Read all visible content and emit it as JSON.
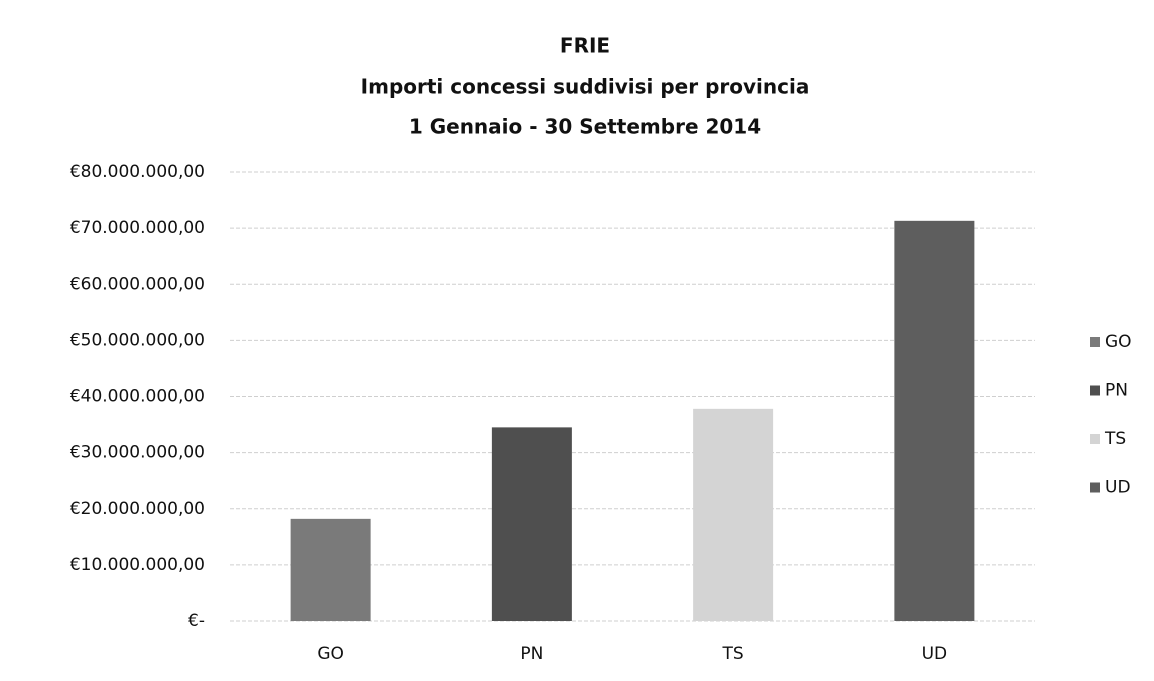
{
  "chart_data": {
    "type": "bar",
    "title": "FRIE",
    "subtitle": [
      "Importi concessi suddivisi per provincia",
      "1 Gennaio - 30 Settembre 2014"
    ],
    "categories": [
      "GO",
      "PN",
      "TS",
      "UD"
    ],
    "values": [
      18200000,
      34500000,
      37800000,
      71300000
    ],
    "colors": [
      "#7a7a7a",
      "#4f4f4f",
      "#d4d4d4",
      "#5e5e5e"
    ],
    "ylim": [
      0,
      80000000
    ],
    "yticks": [
      {
        "value": 0,
        "label": "€-"
      },
      {
        "value": 10000000,
        "label": "€10.000.000,00"
      },
      {
        "value": 20000000,
        "label": "€20.000.000,00"
      },
      {
        "value": 30000000,
        "label": "€30.000.000,00"
      },
      {
        "value": 40000000,
        "label": "€40.000.000,00"
      },
      {
        "value": 50000000,
        "label": "€50.000.000,00"
      },
      {
        "value": 60000000,
        "label": "€60.000.000,00"
      },
      {
        "value": 70000000,
        "label": "€70.000.000,00"
      },
      {
        "value": 80000000,
        "label": "€80.000.000,00"
      }
    ],
    "grid": true,
    "legend": "right"
  }
}
